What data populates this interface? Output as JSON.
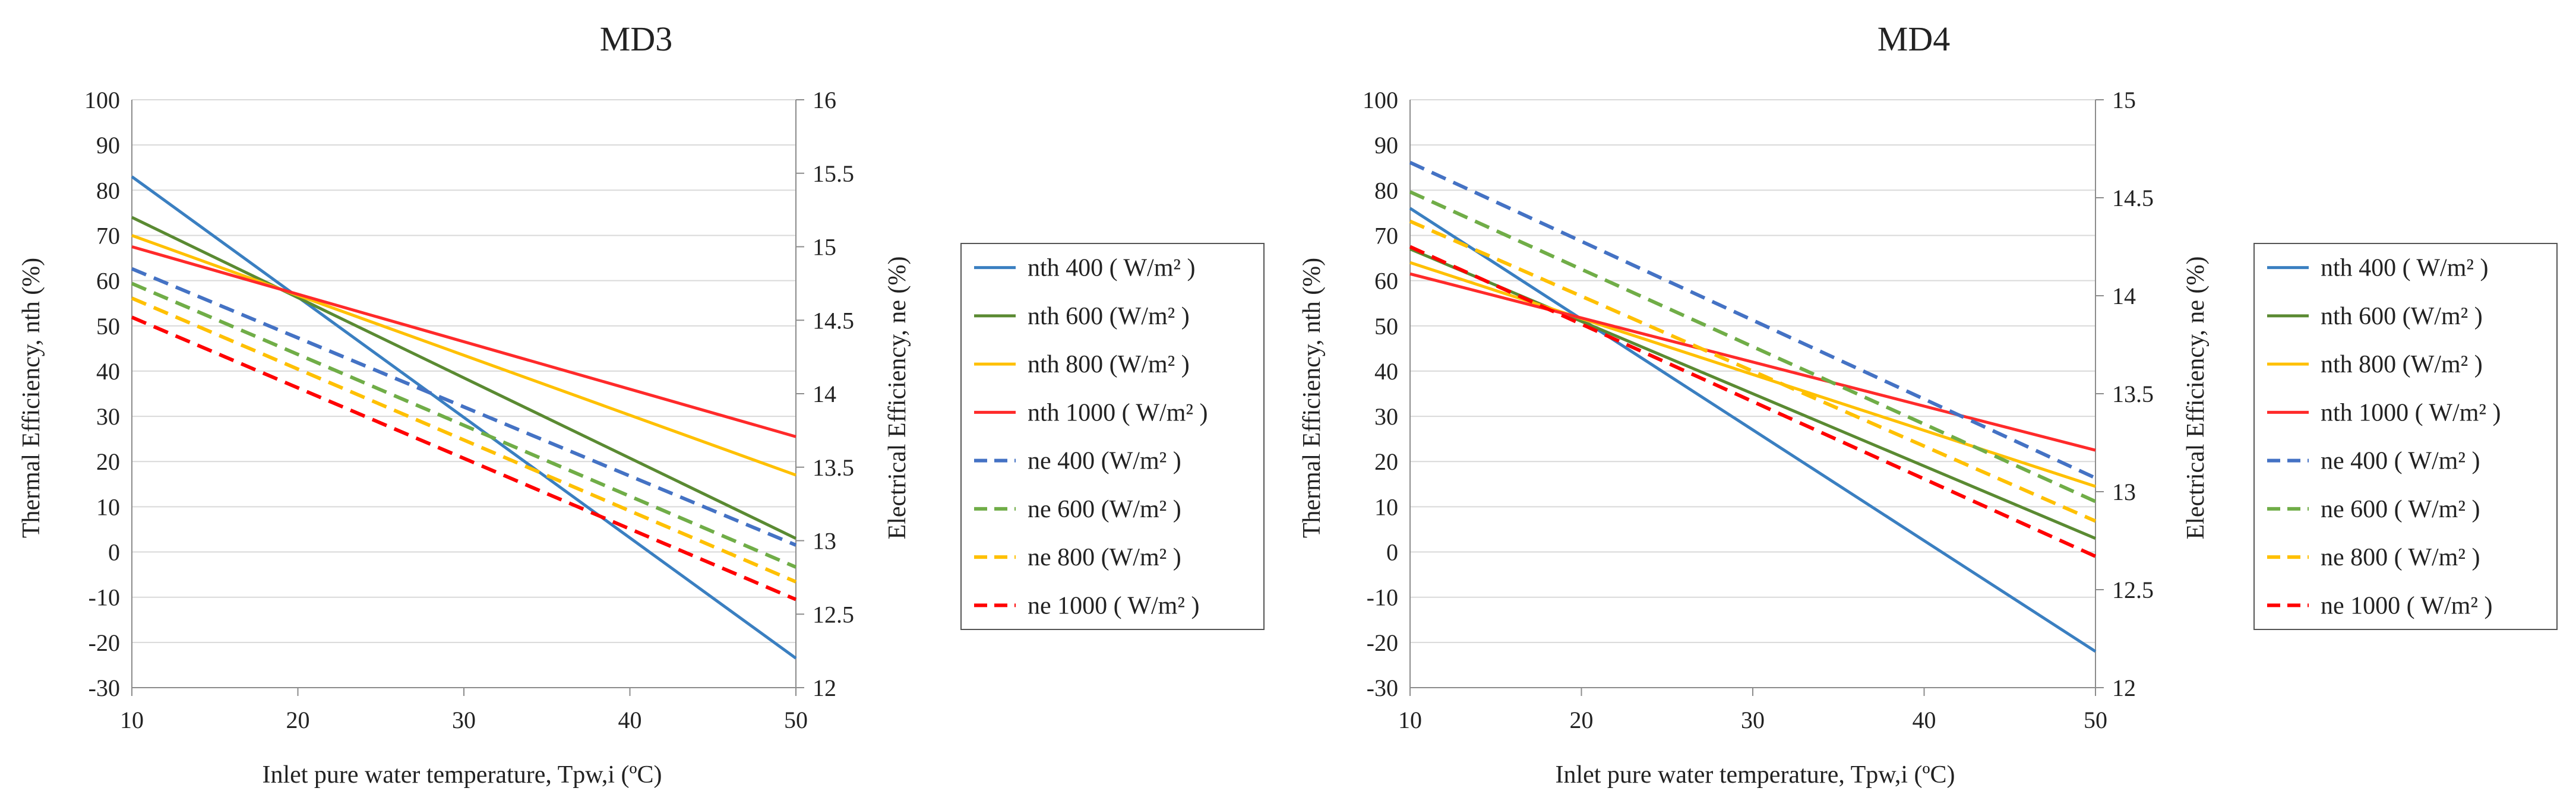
{
  "chart_data": [
    {
      "type": "line",
      "title": "MD3",
      "xlabel": "Inlet pure water temperature, Tpw,i  (ºC)",
      "ylabel": "Thermal Efficiency, nth (%)",
      "y2label": "Electrical Efficiency, ne (%)",
      "xlim": [
        10,
        50
      ],
      "ylim": [
        -30,
        100
      ],
      "y2lim": [
        12,
        16
      ],
      "xticks": [
        10,
        20,
        30,
        40,
        50
      ],
      "yticks": [
        -30,
        -20,
        -10,
        0,
        10,
        20,
        30,
        40,
        50,
        60,
        70,
        80,
        90,
        100
      ],
      "y2ticks": [
        12,
        12.5,
        13,
        13.5,
        14,
        14.5,
        15,
        15.5,
        16
      ],
      "grid": true,
      "legend_position": "right",
      "x": [
        10,
        50
      ],
      "series": [
        {
          "name": "nth 400 ( W/m² )",
          "axis": "left",
          "values": [
            83,
            -23.5
          ],
          "color": "#3a7fc1",
          "dash": "solid"
        },
        {
          "name": "nth 600 (W/m² )",
          "axis": "left",
          "values": [
            74,
            3
          ],
          "color": "#5a8a32",
          "dash": "solid"
        },
        {
          "name": "nth 800 (W/m² )",
          "axis": "left",
          "values": [
            70,
            17
          ],
          "color": "#ffc000",
          "dash": "solid"
        },
        {
          "name": "nth 1000 ( W/m² )",
          "axis": "left",
          "values": [
            67.5,
            25.5
          ],
          "color": "#ff2a2a",
          "dash": "solid"
        },
        {
          "name": "ne 400  (W/m² )",
          "axis": "right",
          "values": [
            14.85,
            12.97
          ],
          "color": "#4472c4",
          "dash": "dashed"
        },
        {
          "name": "ne 600  (W/m² )",
          "axis": "right",
          "values": [
            14.75,
            12.82
          ],
          "color": "#70ad47",
          "dash": "dashed"
        },
        {
          "name": "ne 800  (W/m² )",
          "axis": "right",
          "values": [
            14.65,
            12.72
          ],
          "color": "#ffc000",
          "dash": "dashed"
        },
        {
          "name": "ne 1000  ( W/m² )",
          "axis": "right",
          "values": [
            14.52,
            12.6
          ],
          "color": "#ff0000",
          "dash": "dashed"
        }
      ]
    },
    {
      "type": "line",
      "title": "MD4",
      "xlabel": "Inlet pure water temperature, Tpw,i  (ºC)",
      "ylabel": "Thermal Efficiency, nth (%)",
      "y2label": "Electrical Efficiency, ne (%)",
      "xlim": [
        10,
        50
      ],
      "ylim": [
        -30,
        100
      ],
      "y2lim": [
        12,
        15
      ],
      "xticks": [
        10,
        20,
        30,
        40,
        50
      ],
      "yticks": [
        -30,
        -20,
        -10,
        0,
        10,
        20,
        30,
        40,
        50,
        60,
        70,
        80,
        90,
        100
      ],
      "y2ticks": [
        12,
        12.5,
        13,
        13.5,
        14,
        14.5,
        15
      ],
      "grid": true,
      "legend_position": "right",
      "x": [
        10,
        50
      ],
      "series": [
        {
          "name": "nth 400  ( W/m² )",
          "axis": "left",
          "values": [
            76,
            -22
          ],
          "color": "#3a7fc1",
          "dash": "solid"
        },
        {
          "name": "nth 600 (W/m² )",
          "axis": "left",
          "values": [
            67,
            3
          ],
          "color": "#5a8a32",
          "dash": "solid"
        },
        {
          "name": "nth 800  (W/m² )",
          "axis": "left",
          "values": [
            64,
            14.5
          ],
          "color": "#ffc000",
          "dash": "solid"
        },
        {
          "name": "nth 1000  ( W/m² )",
          "axis": "left",
          "values": [
            61.5,
            22.5
          ],
          "color": "#ff2a2a",
          "dash": "solid"
        },
        {
          "name": "ne 400  ( W/m² )",
          "axis": "right",
          "values": [
            14.68,
            13.07
          ],
          "color": "#4472c4",
          "dash": "dashed"
        },
        {
          "name": "ne 600  ( W/m² )",
          "axis": "right",
          "values": [
            14.53,
            12.95
          ],
          "color": "#70ad47",
          "dash": "dashed"
        },
        {
          "name": "ne 800  ( W/m² )",
          "axis": "right",
          "values": [
            14.38,
            12.85
          ],
          "color": "#ffc000",
          "dash": "dashed"
        },
        {
          "name": "ne 1000  ( W/m² )",
          "axis": "right",
          "values": [
            14.25,
            12.67
          ],
          "color": "#ff0000",
          "dash": "dashed"
        }
      ]
    }
  ]
}
